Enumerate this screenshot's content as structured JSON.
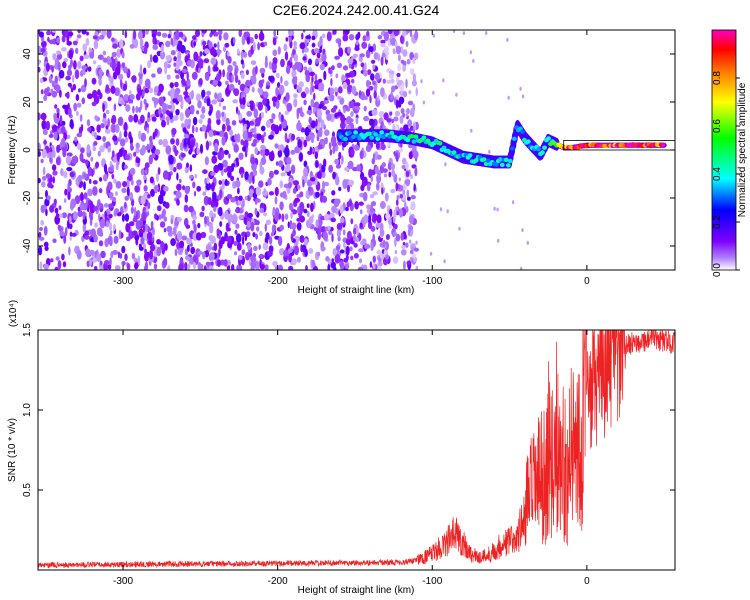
{
  "title": "C2E6.2024.242.00.41.G24",
  "colorbar": {
    "label": "Normalized spectral amplitude",
    "ticks": [
      "0.0",
      "0.2",
      "0.4",
      "0.6",
      "0.8"
    ],
    "tick_values": [
      0.0,
      0.2,
      0.4,
      0.6,
      0.8
    ],
    "range": [
      0,
      1
    ],
    "colormap": [
      "#ffffff",
      "#7f00ff",
      "#0000ff",
      "#00ffff",
      "#00ff00",
      "#ffff00",
      "#ff8000",
      "#ff0000",
      "#ff00ff"
    ]
  },
  "chart_data": [
    {
      "type": "heatmap",
      "xlabel": "Height of straight line (km)",
      "ylabel": "Frequency (Hz)",
      "xlim": [
        -355,
        57
      ],
      "ylim": [
        -50,
        50
      ],
      "xticks": [
        -300,
        -200,
        -100,
        0
      ],
      "xtick_labels": [
        "-300",
        "-200",
        "-100",
        "0"
      ],
      "yticks": [
        -40,
        -20,
        0,
        20,
        40
      ],
      "ytick_labels": [
        "-40",
        "-20",
        "0",
        "20",
        "40"
      ],
      "colorbar_label": "Normalized spectral amplitude",
      "noise_region_x": [
        -355,
        -125
      ],
      "noise_amplitude": 0.15,
      "ridge": [
        {
          "x": -160,
          "y": 6,
          "amp": 0.35
        },
        {
          "x": -145,
          "y": 6,
          "amp": 0.4
        },
        {
          "x": -130,
          "y": 6,
          "amp": 0.4
        },
        {
          "x": -115,
          "y": 5,
          "amp": 0.45
        },
        {
          "x": -100,
          "y": 3,
          "amp": 0.45
        },
        {
          "x": -90,
          "y": 0,
          "amp": 0.45
        },
        {
          "x": -80,
          "y": -3,
          "amp": 0.4
        },
        {
          "x": -70,
          "y": -4,
          "amp": 0.4
        },
        {
          "x": -60,
          "y": -5,
          "amp": 0.4
        },
        {
          "x": -50,
          "y": -5,
          "amp": 0.4
        },
        {
          "x": -45,
          "y": 10,
          "amp": 0.35
        },
        {
          "x": -40,
          "y": 5,
          "amp": 0.4
        },
        {
          "x": -30,
          "y": -2,
          "amp": 0.4
        },
        {
          "x": -25,
          "y": 4,
          "amp": 0.45
        },
        {
          "x": -15,
          "y": 1,
          "amp": 0.9
        },
        {
          "x": -10,
          "y": 1,
          "amp": 0.9
        },
        {
          "x": 0,
          "y": 2,
          "amp": 0.85
        },
        {
          "x": 10,
          "y": 2,
          "amp": 0.95
        },
        {
          "x": 20,
          "y": 2,
          "amp": 0.95
        },
        {
          "x": 30,
          "y": 2,
          "amp": 0.95
        },
        {
          "x": 40,
          "y": 2,
          "amp": 0.95
        },
        {
          "x": 50,
          "y": 2,
          "amp": 0.95
        }
      ]
    },
    {
      "type": "line",
      "xlabel": "Height of straight line (km)",
      "ylabel": "SNR (10 * v/v)",
      "multiplier_label": "(x10⁴)",
      "xlim": [
        -355,
        57
      ],
      "ylim": [
        0,
        15000
      ],
      "xticks": [
        -300,
        -200,
        -100,
        0
      ],
      "xtick_labels": [
        "-300",
        "-200",
        "-100",
        "0"
      ],
      "yticks": [
        5000,
        10000,
        15000
      ],
      "ytick_labels": [
        "0.5",
        "1.0",
        "1.5"
      ],
      "color": "#ee2222",
      "series": [
        {
          "x": [
            -355,
            -300,
            -250,
            -200,
            -150,
            -120,
            -110,
            -100,
            -95,
            -90,
            -85,
            -80,
            -75,
            -70,
            -65,
            -60,
            -55,
            -50,
            -45,
            -40,
            -38,
            -35,
            -32,
            -30,
            -27,
            -25,
            -22,
            -20,
            -17,
            -15,
            -12,
            -10,
            -7,
            -5,
            -3,
            0,
            5,
            10,
            15,
            20,
            25,
            30,
            35,
            40,
            45,
            50,
            57
          ],
          "y": [
            300,
            350,
            380,
            420,
            450,
            480,
            600,
            1000,
            1400,
            1800,
            2300,
            1700,
            1000,
            800,
            900,
            1200,
            1600,
            1800,
            2000,
            3500,
            4500,
            5000,
            5500,
            5600,
            6000,
            7500,
            6500,
            8500,
            6500,
            7000,
            5500,
            8000,
            7500,
            8500,
            9500,
            10500,
            11500,
            12500,
            13000,
            13500,
            14000,
            14200,
            14300,
            14400,
            14400,
            14300,
            14200
          ]
        }
      ]
    }
  ]
}
